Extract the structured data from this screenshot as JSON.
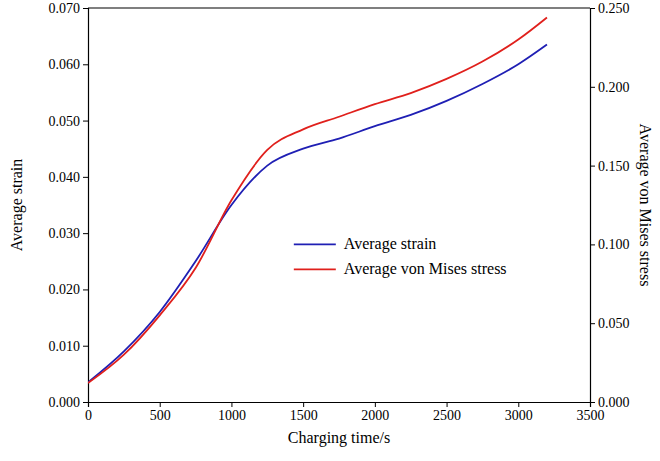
{
  "chart_data": {
    "type": "line",
    "x_label": "Charging time/s",
    "y_label": "Average strain",
    "y2_label": "Average von Mises stress",
    "x": [
      0,
      250,
      500,
      750,
      1000,
      1250,
      1500,
      1750,
      2000,
      2250,
      2500,
      2750,
      3000,
      3200
    ],
    "series": [
      {
        "name": "Average strain",
        "color": "#1f1fb4",
        "values": [
          0.0035,
          0.009,
          0.016,
          0.025,
          0.035,
          0.042,
          0.045,
          0.0468,
          0.049,
          0.051,
          0.0535,
          0.0565,
          0.06,
          0.0635
        ]
      },
      {
        "name": "Average von Mises stress",
        "color": "#e0201c",
        "axis": "y2",
        "values": [
          0.012,
          0.03,
          0.055,
          0.085,
          0.128,
          0.16,
          0.173,
          0.181,
          0.189,
          0.196,
          0.205,
          0.216,
          0.23,
          0.244
        ]
      }
    ],
    "xlim": [
      0,
      3500
    ],
    "xticks": [
      0,
      500,
      1000,
      1500,
      2000,
      2500,
      3000,
      3500
    ],
    "ylim": [
      0,
      0.07
    ],
    "yticks": [
      {
        "value": 0,
        "label": "0.000"
      },
      {
        "value": 0.01,
        "label": "0.010"
      },
      {
        "value": 0.02,
        "label": "0.020"
      },
      {
        "value": 0.03,
        "label": "0.030"
      },
      {
        "value": 0.04,
        "label": "0.040"
      },
      {
        "value": 0.05,
        "label": "0.050"
      },
      {
        "value": 0.06,
        "label": "0.060"
      },
      {
        "value": 0.07,
        "label": "0.070"
      }
    ],
    "y2lim": [
      0,
      0.25
    ],
    "y2ticks": [
      {
        "value": 0,
        "label": "0.000"
      },
      {
        "value": 0.05,
        "label": "0.050"
      },
      {
        "value": 0.1,
        "label": "0.100"
      },
      {
        "value": 0.15,
        "label": "0.150"
      },
      {
        "value": 0.2,
        "label": "0.200"
      },
      {
        "value": 0.25,
        "label": "0.250"
      }
    ],
    "legend": "center",
    "grid": false
  }
}
